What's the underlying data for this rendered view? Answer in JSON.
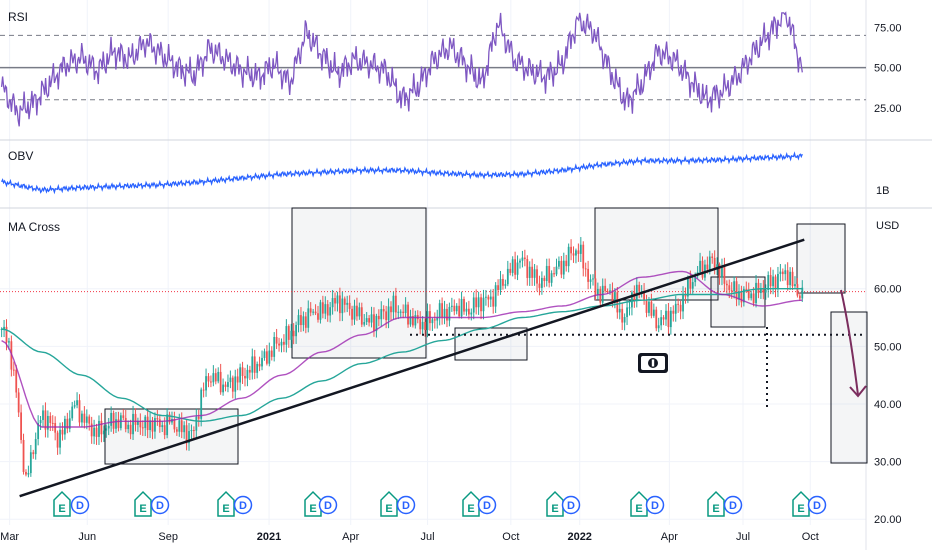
{
  "panes": {
    "rsi": {
      "title": "RSI"
    },
    "obv": {
      "title": "OBV"
    },
    "price": {
      "title": "MA Cross"
    }
  },
  "chart_data": [
    {
      "type": "line",
      "title": "RSI",
      "ylim": [
        5,
        92
      ],
      "yticks": [
        "75.00",
        "50.00",
        "25.00"
      ],
      "yticks_values": [
        75,
        50,
        25
      ],
      "bands": {
        "upper": 70,
        "mid": 50,
        "lower": 30
      },
      "color": "#7e57c2",
      "series": [
        {
          "x": [
            0,
            2,
            4,
            6,
            8,
            10,
            12,
            14,
            16,
            18,
            20,
            22,
            24,
            26,
            28,
            30,
            32,
            34,
            36,
            38,
            40,
            42,
            44,
            46,
            48,
            50,
            52,
            54,
            56,
            58,
            60,
            62,
            64,
            66,
            68,
            70,
            72,
            74,
            76,
            78,
            80,
            82,
            84,
            86,
            88,
            90,
            92,
            94,
            96,
            98,
            100
          ],
          "values": [
            38,
            22,
            28,
            40,
            52,
            56,
            48,
            60,
            55,
            66,
            58,
            50,
            45,
            62,
            55,
            48,
            44,
            52,
            40,
            72,
            58,
            46,
            55,
            52,
            48,
            30,
            38,
            55,
            63,
            52,
            40,
            78,
            55,
            48,
            44,
            52,
            80,
            72,
            48,
            28,
            40,
            60,
            55,
            42,
            30,
            35,
            45,
            60,
            72,
            85,
            48
          ]
        }
      ]
    },
    {
      "type": "line",
      "title": "OBV",
      "yticks": [
        "1B"
      ],
      "color": "#2962ff",
      "series": [
        {
          "x": [
            0,
            5,
            10,
            15,
            20,
            25,
            30,
            35,
            40,
            45,
            50,
            55,
            60,
            65,
            70,
            75,
            80,
            85,
            90,
            95,
            100
          ],
          "values": [
            0.42,
            0.25,
            0.3,
            0.33,
            0.36,
            0.42,
            0.5,
            0.58,
            0.62,
            0.66,
            0.66,
            0.6,
            0.56,
            0.58,
            0.66,
            0.78,
            0.86,
            0.86,
            0.88,
            0.92,
            0.96
          ]
        }
      ]
    },
    {
      "type": "line",
      "title": "MA Cross",
      "ylim": [
        19,
        74
      ],
      "axis_unit": "USD",
      "yticks": [
        "60.00",
        "50.00",
        "40.00",
        "30.00",
        "20.00"
      ],
      "yticks_values": [
        60,
        50,
        40,
        30,
        20
      ],
      "xticks": [
        "Mar",
        "Jun",
        "Sep",
        "2021",
        "Apr",
        "Jul",
        "Oct",
        "2022",
        "Apr",
        "Jul",
        "Oct"
      ],
      "xticks_pos": [
        1,
        10.7,
        20.8,
        33.4,
        43.6,
        53.2,
        63.6,
        72.2,
        83.4,
        92.6,
        101
      ],
      "xticks_bold": [
        "2021",
        "2022"
      ],
      "price": {
        "x": [
          0,
          1,
          2,
          3,
          4,
          5,
          6,
          7,
          8,
          9,
          10,
          11,
          12,
          13,
          14,
          15,
          16,
          17,
          18,
          19,
          20,
          21,
          22,
          23,
          24,
          25,
          26,
          27,
          28,
          29,
          30,
          31,
          32,
          33,
          34,
          35,
          36,
          37,
          38,
          39,
          40,
          41,
          42,
          43,
          44,
          45,
          46,
          47,
          48,
          49,
          50,
          51,
          52,
          53,
          54,
          55,
          56,
          57,
          58,
          59,
          60,
          61,
          62,
          63,
          64,
          65,
          66,
          67,
          68,
          69,
          70,
          71,
          72,
          73,
          74,
          75,
          76,
          77,
          78,
          79,
          80,
          81,
          82,
          83,
          84,
          85,
          86,
          87,
          88,
          89,
          90,
          91,
          92,
          93,
          94,
          95,
          96,
          97,
          98,
          99,
          100
        ],
        "values": [
          53,
          50,
          40,
          26,
          33,
          38,
          37,
          34,
          36,
          40,
          38,
          36,
          35,
          36,
          37,
          37,
          36,
          37,
          36,
          37,
          36,
          37,
          36,
          35,
          35,
          42,
          45,
          44,
          43,
          44,
          45,
          46,
          47,
          48,
          50,
          51,
          52,
          54,
          55,
          56,
          56,
          57,
          58,
          57,
          56,
          55,
          54,
          55,
          56,
          57,
          56,
          55,
          54,
          54,
          55,
          56,
          56,
          57,
          56,
          57,
          58,
          58,
          60,
          62,
          64,
          65,
          63,
          61,
          62,
          63,
          64,
          66,
          67,
          63,
          60,
          59,
          60,
          56,
          55,
          60,
          59,
          56,
          54,
          55,
          56,
          58,
          61,
          63,
          64,
          65,
          62,
          60,
          59,
          59,
          59,
          60,
          61,
          62,
          63,
          60,
          59
        ]
      },
      "series": [
        {
          "label": "ma_fast",
          "color": "#8e44ad",
          "x": [
            0,
            5,
            10,
            15,
            20,
            25,
            30,
            35,
            40,
            45,
            50,
            55,
            60,
            65,
            70,
            75,
            80,
            85,
            90,
            95,
            100
          ],
          "values": [
            51,
            36,
            36,
            37,
            37,
            38,
            41,
            45,
            49,
            52,
            55,
            55,
            55,
            56,
            57,
            59,
            62,
            63,
            59,
            57,
            58
          ]
        },
        {
          "label": "ma_slow",
          "color": "#26a69a",
          "x": [
            0,
            5,
            10,
            15,
            20,
            25,
            30,
            35,
            40,
            45,
            50,
            55,
            60,
            65,
            70,
            75,
            80,
            85,
            90,
            95,
            100
          ],
          "values": [
            53,
            49,
            45,
            41,
            38,
            37,
            38,
            41,
            44,
            47,
            49,
            51,
            53,
            55,
            56,
            57,
            58,
            59,
            59,
            60,
            60
          ]
        }
      ],
      "ref_price": 59.5,
      "support_level": 52,
      "trendline": {
        "x": [
          0,
          100
        ],
        "values": [
          24,
          68.5
        ]
      }
    }
  ]
}
